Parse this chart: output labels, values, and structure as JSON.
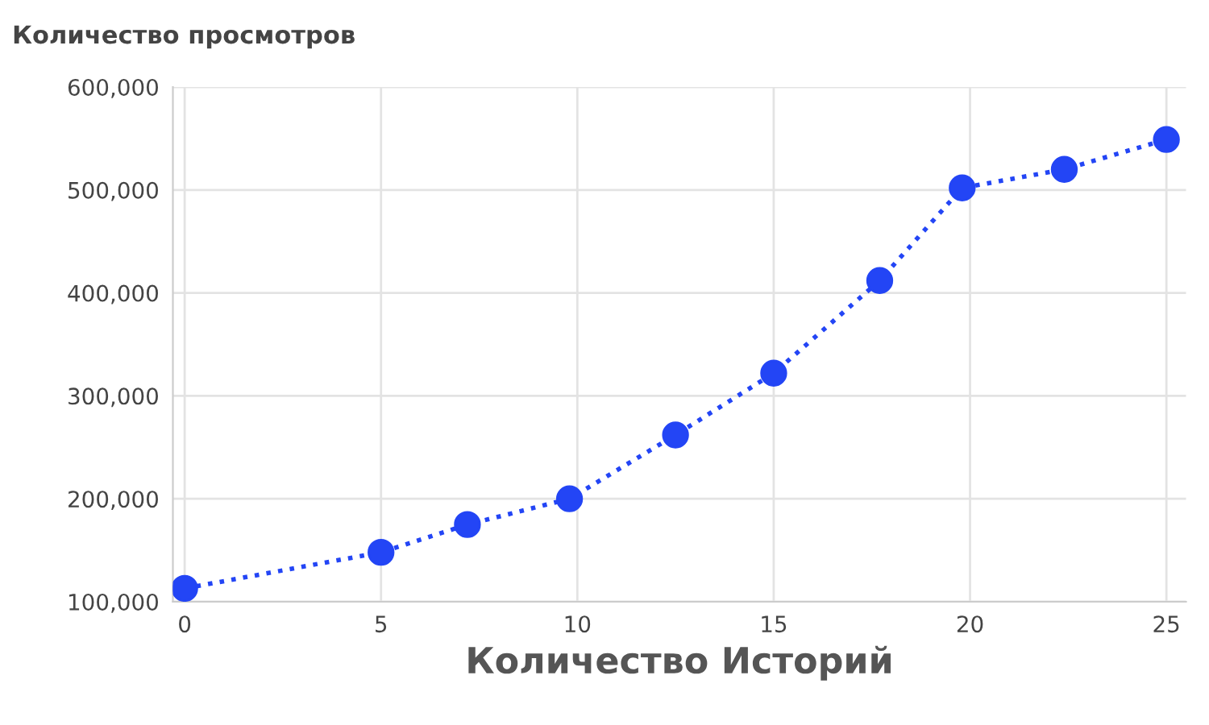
{
  "chart_data": {
    "type": "line",
    "title": "Количество просмотров",
    "xlabel": "Количество Историй",
    "x": [
      0,
      5,
      7.2,
      9.8,
      12.5,
      15,
      17.7,
      19.8,
      22.4,
      25
    ],
    "series": [
      {
        "color": "#2345f5",
        "values": [
          113000,
          148000,
          175000,
          200000,
          262000,
          322000,
          412000,
          502000,
          520000,
          549000
        ]
      }
    ],
    "xlim": [
      -0.3,
      25.5
    ],
    "xticks": [
      0,
      5,
      10,
      15,
      20,
      25
    ],
    "ylim": [
      100000,
      600000
    ],
    "yticks": [
      {
        "value": 100000,
        "label": "100,000"
      },
      {
        "value": 200000,
        "label": "200,000"
      },
      {
        "value": 300000,
        "label": "300,000"
      },
      {
        "value": 400000,
        "label": "400,000"
      },
      {
        "value": 500000,
        "label": "500,000"
      },
      {
        "value": 600000,
        "label": "600,000"
      }
    ],
    "grid": true,
    "marker": "circle",
    "line_style": "dotted"
  }
}
